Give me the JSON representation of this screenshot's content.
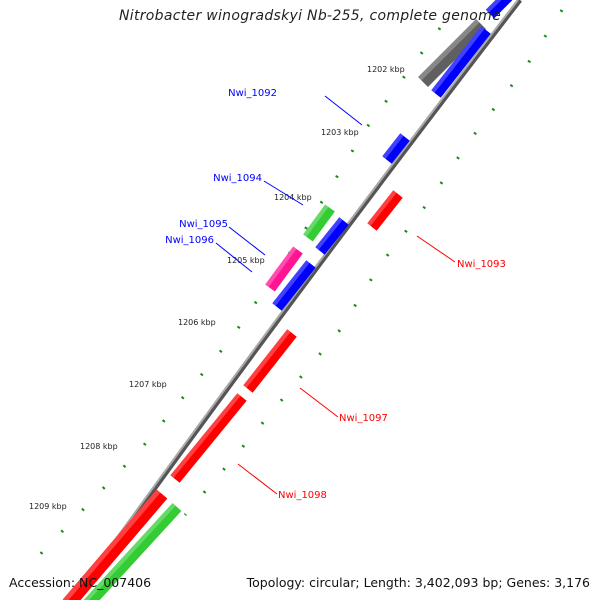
{
  "title": "Nitrobacter winogradskyi Nb-255, complete genome",
  "footer": {
    "accession": "Accession: NC_007406",
    "summary": "Topology: circular; Length: 3,402,093 bp; Genes: 3,176"
  },
  "ticks": [
    "1202 kbp",
    "1203 kbp",
    "1204 kbp",
    "1205 kbp",
    "1206 kbp",
    "1207 kbp",
    "1208 kbp",
    "1209 kbp"
  ],
  "genes": [
    {
      "label": "Nwi_1092",
      "color": "#0000ff"
    },
    {
      "label": "Nwi_1093",
      "color": "#ff0000"
    },
    {
      "label": "Nwi_1094",
      "color": "#0000ff"
    },
    {
      "label": "Nwi_1095",
      "color": "#0000ff"
    },
    {
      "label": "Nwi_1096",
      "color": "#0000ff"
    },
    {
      "label": "Nwi_1097",
      "color": "#ff0000"
    },
    {
      "label": "Nwi_1098",
      "color": "#ff0000"
    }
  ],
  "colors": {
    "backbone": "#808080",
    "ticks": "#1a8a1a",
    "forward": "#0000ff",
    "reverse": "#ff0000",
    "rna": "#33cc33",
    "pseudo": "#ff1493",
    "other": "#606060"
  }
}
